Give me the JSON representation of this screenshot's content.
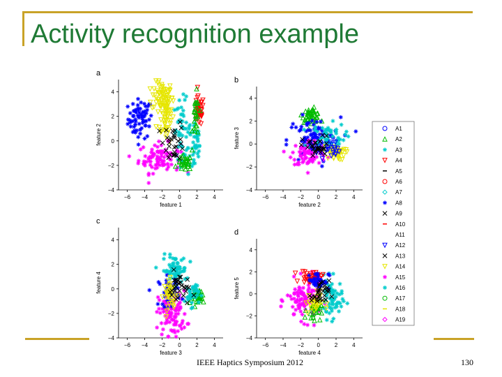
{
  "slide": {
    "title": "Activity recognition example",
    "footer": "IEEE Haptics Symposium 2012",
    "page_number": "130"
  },
  "colors": {
    "title": "#1f7a35",
    "frame": "#c9a227"
  },
  "chart_data": [
    {
      "type": "scatter",
      "panel_label": "a",
      "xlabel": "feature 1",
      "ylabel": "feature 2",
      "xticks": [
        "−6",
        "−4",
        "−2",
        "0",
        "2",
        "4"
      ],
      "yticks": [
        "−4",
        "−2",
        "0",
        "2",
        "4"
      ],
      "xlim": [
        -7,
        5
      ],
      "ylim": [
        -4,
        5
      ],
      "clusters": [
        {
          "class": "A8",
          "cx": -4.5,
          "cy": 1.8,
          "sx": 0.7,
          "sy": 0.8,
          "n": 70
        },
        {
          "class": "A14",
          "cx": -2.0,
          "cy": 3.6,
          "sx": 0.6,
          "sy": 0.6,
          "n": 60
        },
        {
          "class": "A14",
          "cx": -1.6,
          "cy": 2.0,
          "sx": 0.5,
          "sy": 1.0,
          "n": 50
        },
        {
          "class": "A15",
          "cx": -2.3,
          "cy": -1.4,
          "sx": 1.2,
          "sy": 0.6,
          "n": 90
        },
        {
          "class": "A16",
          "cx": 0.3,
          "cy": 1.0,
          "sx": 0.5,
          "sy": 1.2,
          "n": 50
        },
        {
          "class": "A16",
          "cx": 1.8,
          "cy": -0.5,
          "sx": 0.4,
          "sy": 1.2,
          "n": 40
        },
        {
          "class": "A4",
          "cx": 2.2,
          "cy": 2.4,
          "sx": 0.3,
          "sy": 0.6,
          "n": 40
        },
        {
          "class": "A2",
          "cx": 0.6,
          "cy": -1.8,
          "sx": 0.4,
          "sy": 0.3,
          "n": 30
        },
        {
          "class": "A2",
          "cx": 1.9,
          "cy": 1.8,
          "sx": 0.2,
          "sy": 1.0,
          "n": 25
        },
        {
          "class": "A13",
          "cx": -0.6,
          "cy": 0.0,
          "sx": 0.6,
          "sy": 0.8,
          "n": 30
        }
      ]
    },
    {
      "type": "scatter",
      "panel_label": "b",
      "xlabel": "feature 2",
      "ylabel": "feature 3",
      "xticks": [
        "−6",
        "−4",
        "−2",
        "0",
        "2",
        "4"
      ],
      "yticks": [
        "−4",
        "−2",
        "0",
        "2",
        "4"
      ],
      "xlim": [
        -7,
        5
      ],
      "ylim": [
        -4,
        5
      ],
      "clusters": [
        {
          "class": "A2",
          "cx": -0.8,
          "cy": 2.5,
          "sx": 0.5,
          "sy": 0.3,
          "n": 50
        },
        {
          "class": "A8",
          "cx": -0.5,
          "cy": 0.3,
          "sx": 1.5,
          "sy": 1.0,
          "n": 90
        },
        {
          "class": "A15",
          "cx": -1.0,
          "cy": -0.8,
          "sx": 1.0,
          "sy": 0.6,
          "n": 80
        },
        {
          "class": "A16",
          "cx": 1.0,
          "cy": 0.6,
          "sx": 1.0,
          "sy": 0.6,
          "n": 60
        },
        {
          "class": "A14",
          "cx": 1.8,
          "cy": -0.8,
          "sx": 0.6,
          "sy": 0.3,
          "n": 40
        },
        {
          "class": "A12",
          "cx": 0.8,
          "cy": -0.4,
          "sx": 0.8,
          "sy": 0.4,
          "n": 30
        },
        {
          "class": "A13",
          "cx": -0.2,
          "cy": -0.3,
          "sx": 0.8,
          "sy": 0.5,
          "n": 30
        }
      ]
    },
    {
      "type": "scatter",
      "panel_label": "c",
      "xlabel": "feature 3",
      "ylabel": "feature 4",
      "xticks": [
        "−6",
        "−4",
        "−2",
        "0",
        "2",
        "4"
      ],
      "yticks": [
        "−4",
        "−2",
        "0",
        "2",
        "4"
      ],
      "xlim": [
        -7,
        5
      ],
      "ylim": [
        -4,
        5
      ],
      "clusters": [
        {
          "class": "A15",
          "cx": -0.8,
          "cy": -2.0,
          "sx": 0.8,
          "sy": 0.9,
          "n": 100
        },
        {
          "class": "A16",
          "cx": -0.6,
          "cy": 1.5,
          "sx": 0.7,
          "sy": 0.6,
          "n": 70
        },
        {
          "class": "A2",
          "cx": 2.3,
          "cy": -0.6,
          "sx": 0.4,
          "sy": 0.3,
          "n": 40
        },
        {
          "class": "A8",
          "cx": -1.2,
          "cy": -0.2,
          "sx": 0.6,
          "sy": 0.6,
          "n": 40
        },
        {
          "class": "A14",
          "cx": -1.0,
          "cy": -0.5,
          "sx": 0.4,
          "sy": 0.6,
          "n": 40
        },
        {
          "class": "A16",
          "cx": 1.4,
          "cy": -0.4,
          "sx": 0.4,
          "sy": 0.5,
          "n": 35
        },
        {
          "class": "A13",
          "cx": 0.0,
          "cy": 0.0,
          "sx": 0.6,
          "sy": 0.7,
          "n": 30
        }
      ]
    },
    {
      "type": "scatter",
      "panel_label": "d",
      "xlabel": "feature 4",
      "ylabel": "feature 5",
      "xticks": [
        "−6",
        "−4",
        "−2",
        "0",
        "2",
        "4"
      ],
      "yticks": [
        "−4",
        "−2",
        "0",
        "2",
        "4"
      ],
      "xlim": [
        -7,
        5
      ],
      "ylim": [
        -4,
        5
      ],
      "clusters": [
        {
          "class": "A15",
          "cx": -1.6,
          "cy": -0.6,
          "sx": 1.0,
          "sy": 0.9,
          "n": 100
        },
        {
          "class": "A16",
          "cx": 1.5,
          "cy": -0.5,
          "sx": 0.6,
          "sy": 0.9,
          "n": 70
        },
        {
          "class": "A4",
          "cx": -0.8,
          "cy": 1.5,
          "sx": 0.6,
          "sy": 0.3,
          "n": 40
        },
        {
          "class": "A8",
          "cx": 0.0,
          "cy": 1.2,
          "sx": 0.6,
          "sy": 0.4,
          "n": 40
        },
        {
          "class": "A2",
          "cx": -0.5,
          "cy": -1.5,
          "sx": 0.4,
          "sy": 0.4,
          "n": 30
        },
        {
          "class": "A14",
          "cx": -0.5,
          "cy": -0.8,
          "sx": 0.5,
          "sy": 0.5,
          "n": 30
        },
        {
          "class": "A13",
          "cx": 0.2,
          "cy": 0.0,
          "sx": 0.5,
          "sy": 0.6,
          "n": 30
        }
      ]
    }
  ],
  "legend": {
    "placement": "right",
    "entries": [
      {
        "label": "A1",
        "marker": "circle",
        "color": "#0000ff"
      },
      {
        "label": "A2",
        "marker": "triangle-up",
        "color": "#00bb00"
      },
      {
        "label": "A3",
        "marker": "star",
        "color": "#00cccc"
      },
      {
        "label": "A4",
        "marker": "triangle-down",
        "color": "#ff0000"
      },
      {
        "label": "A5",
        "marker": "dash",
        "color": "#000000"
      },
      {
        "label": "A6",
        "marker": "circle",
        "color": "#ff0000"
      },
      {
        "label": "A7",
        "marker": "diamond",
        "color": "#00cccc"
      },
      {
        "label": "A8",
        "marker": "star",
        "color": "#0000ff"
      },
      {
        "label": "A9",
        "marker": "x",
        "color": "#000000"
      },
      {
        "label": "A10",
        "marker": "dash",
        "color": "#ff0000"
      },
      {
        "label": "A11",
        "marker": "dash",
        "color": "#ffffff"
      },
      {
        "label": "A12",
        "marker": "triangle-down",
        "color": "#0000ff"
      },
      {
        "label": "A13",
        "marker": "x",
        "color": "#000000"
      },
      {
        "label": "A14",
        "marker": "triangle-down",
        "color": "#e6e600"
      },
      {
        "label": "A15",
        "marker": "star",
        "color": "#ff00ff"
      },
      {
        "label": "A16",
        "marker": "star",
        "color": "#00cccc"
      },
      {
        "label": "A17",
        "marker": "circle",
        "color": "#00bb00"
      },
      {
        "label": "A18",
        "marker": "dash",
        "color": "#e6e600"
      },
      {
        "label": "A19",
        "marker": "diamond",
        "color": "#ff00ff"
      }
    ]
  }
}
